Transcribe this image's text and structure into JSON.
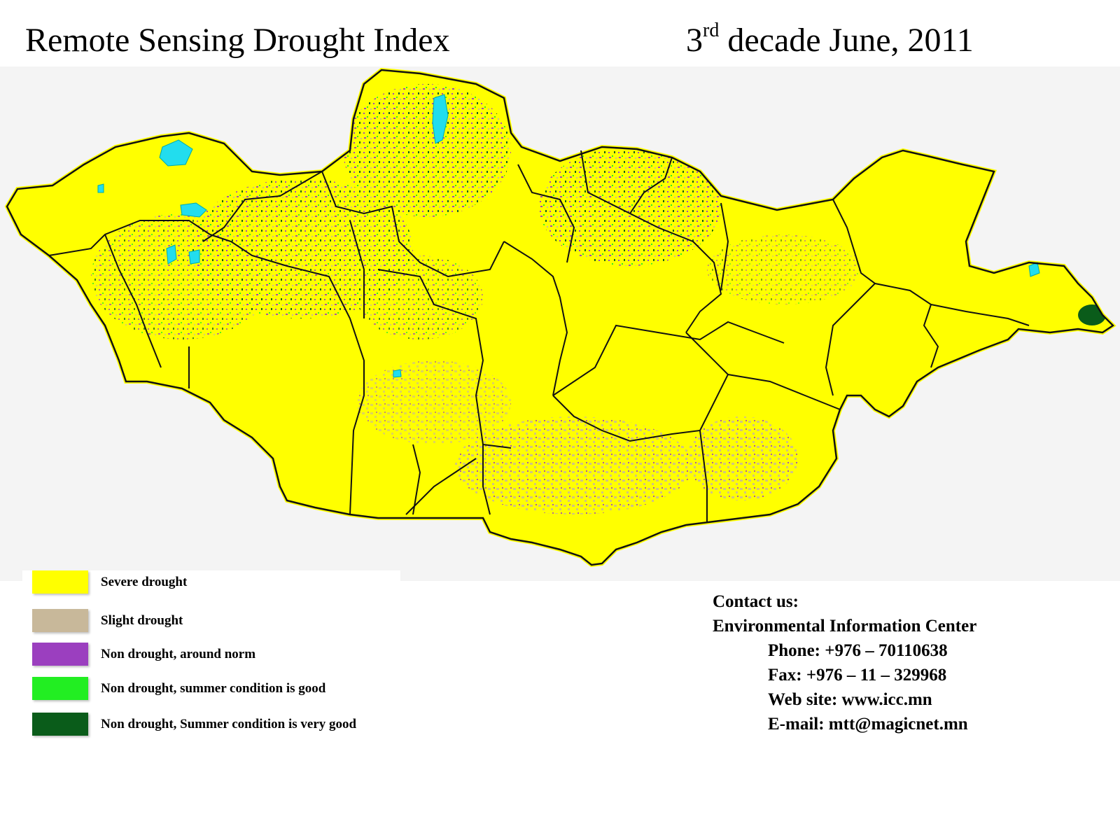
{
  "header": {
    "title": "Remote Sensing Drought Index",
    "date_ordinal": "3",
    "date_suffix": "rd",
    "date_rest": " decade June, 2011"
  },
  "legend": {
    "items": [
      {
        "label": "Severe drought",
        "color": "#ffff00"
      },
      {
        "label": "Slight drought",
        "color": "#c8b89a"
      },
      {
        "label": "Non drought, around norm",
        "color": "#9b3fbf"
      },
      {
        "label": "Non drought, summer condition is good",
        "color": "#22ee22"
      },
      {
        "label": "Non drought, Summer condition is very good",
        "color": "#0a5c1a"
      }
    ]
  },
  "contact": {
    "heading": "Contact us:",
    "org": "Environmental Information Center",
    "phone": "Phone: +976 – 70110638",
    "fax": "Fax: +976 – 11 – 329968",
    "website": "Web site: www.icc.mn",
    "email": "E-mail: mtt@magicnet.mn"
  },
  "map": {
    "background_color": "#f4f4f4",
    "water_color": "#22ddee",
    "boundary_color": "#111111"
  }
}
